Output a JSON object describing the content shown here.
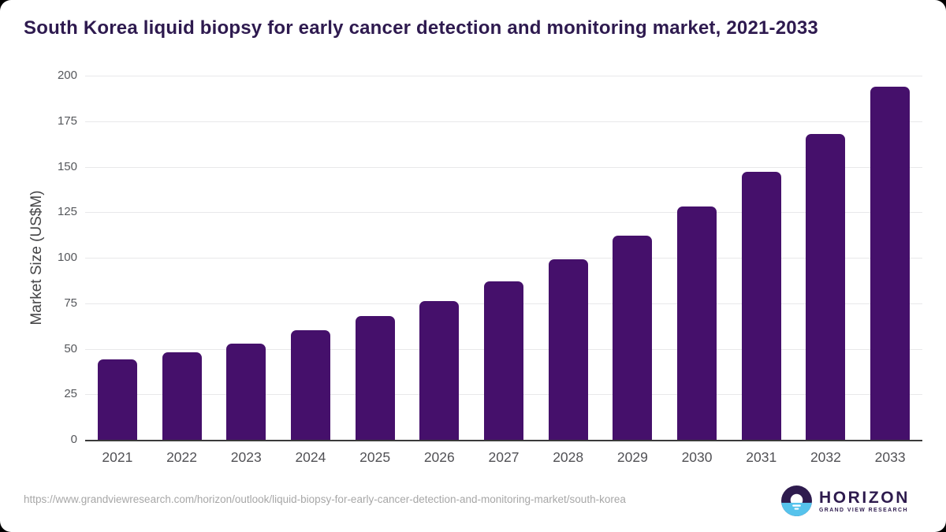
{
  "page": {
    "background_color": "#000000",
    "card_color": "#ffffff"
  },
  "chart_data": {
    "type": "bar",
    "title": "South Korea liquid biopsy for early cancer detection and monitoring market, 2021-2033",
    "categories": [
      "2021",
      "2022",
      "2023",
      "2024",
      "2025",
      "2026",
      "2027",
      "2028",
      "2029",
      "2030",
      "2031",
      "2032",
      "2033"
    ],
    "values": [
      44,
      48,
      53,
      60,
      68,
      76,
      87,
      99,
      112,
      128,
      147,
      168,
      194
    ],
    "xlabel": "",
    "ylabel": "Market Size (US$M)",
    "ylim": [
      0,
      200
    ],
    "yticks": [
      0,
      25,
      50,
      75,
      100,
      125,
      150,
      175,
      200
    ],
    "grid": true,
    "legend": false,
    "bar_color": "#45106B",
    "gridline_color": "#e8e8ea",
    "axis_line_color": "#3a3a3a",
    "tick_label_color": "#55575b",
    "title_color": "#2E1A4F"
  },
  "footer": {
    "source_url": "https://www.grandviewresearch.com/horizon/outlook/liquid-biopsy-for-early-cancer-detection-and-monitoring-market/south-korea",
    "logo": {
      "name": "HORIZON",
      "subtext": "GRAND VIEW RESEARCH",
      "icon": "horizon-sunset-icon",
      "purple": "#2E1B4E",
      "blue": "#56C3EC"
    }
  }
}
